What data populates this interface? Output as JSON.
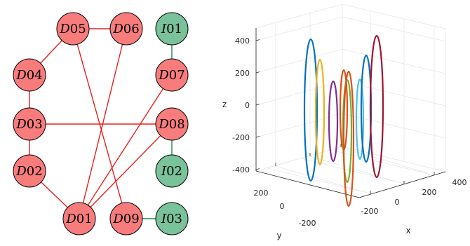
{
  "graph": {
    "node_fill_D": "#f87c7c",
    "node_fill_I": "#79c29a",
    "edge_color_D": "#e8201b",
    "edge_color_I": "#1f8a47",
    "nodes": [
      {
        "id": "D05",
        "prefix": "D",
        "num": "05"
      },
      {
        "id": "D06",
        "prefix": "D",
        "num": "06"
      },
      {
        "id": "I01",
        "prefix": "I",
        "num": "01"
      },
      {
        "id": "D04",
        "prefix": "D",
        "num": "04"
      },
      {
        "id": "D07",
        "prefix": "D",
        "num": "07"
      },
      {
        "id": "D03",
        "prefix": "D",
        "num": "03"
      },
      {
        "id": "D08",
        "prefix": "D",
        "num": "08"
      },
      {
        "id": "D02",
        "prefix": "D",
        "num": "02"
      },
      {
        "id": "I02",
        "prefix": "I",
        "num": "02"
      },
      {
        "id": "D01",
        "prefix": "D",
        "num": "01"
      },
      {
        "id": "D09",
        "prefix": "D",
        "num": "09"
      },
      {
        "id": "I03",
        "prefix": "I",
        "num": "03"
      }
    ],
    "edges": [
      [
        "D05",
        "D06"
      ],
      [
        "D05",
        "D04"
      ],
      [
        "D05",
        "D09"
      ],
      [
        "D06",
        "D01"
      ],
      [
        "D04",
        "D03"
      ],
      [
        "D03",
        "D02"
      ],
      [
        "D03",
        "D08"
      ],
      [
        "D02",
        "D01"
      ],
      [
        "D01",
        "D07"
      ],
      [
        "D01",
        "D08"
      ],
      [
        "D09",
        "I03"
      ],
      [
        "D07",
        "I01"
      ],
      [
        "D08",
        "I02"
      ]
    ]
  },
  "plot3d": {
    "xlabel": "x",
    "ylabel": "y",
    "zlabel": "z",
    "x_ticks": [
      "-200",
      "0",
      "200",
      "400"
    ],
    "y_ticks": [
      "200",
      "0",
      "-200"
    ],
    "z_ticks": [
      "400",
      "200",
      "0",
      "-200",
      "-400"
    ],
    "series_colors": [
      "#0072bd",
      "#edb120",
      "#7e2f8e",
      "#d95319",
      "#77ac30",
      "#4dbeee",
      "#0072bd",
      "#a2142f"
    ]
  }
}
